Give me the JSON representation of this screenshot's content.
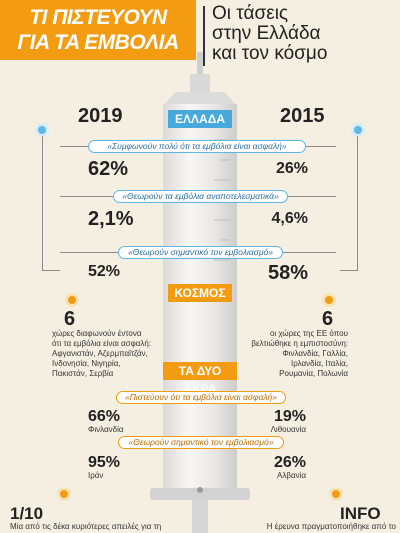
{
  "header": {
    "title_line1": "ΤΙ ΠΙΣΤΕΥΟΥΝ",
    "title_line2": "ΓΙΑ ΤΑ ΕΜΒΟΛΙΑ",
    "subtitle_line1": "Οι τάσεις",
    "subtitle_line2": "στην Ελλάδα",
    "subtitle_line3": "και τον κόσμο"
  },
  "greece": {
    "label": "ΕΛΛΑΔΑ",
    "year_left": "2019",
    "year_right": "2015",
    "items": [
      {
        "label": "«Συμφωνούν πολύ ότι τα εμβόλια είναι ασφαλή»",
        "left": "62%",
        "right": "26%"
      },
      {
        "label": "«Θεωρούν τα εμβόλια αναποτελεσματικά»",
        "left": "2,1%",
        "right": "4,6%"
      },
      {
        "label": "«Θεωρούν σημαντικό τον εμβολιασμό»",
        "left": "52%",
        "right": "58%"
      }
    ]
  },
  "world": {
    "label": "ΚΟΣΜΟΣ",
    "left_number": "6",
    "left_text_1": "χώρες διαφωνούν έντονα",
    "left_text_2": "ότι τα εμβόλια είναι ασφαλή:",
    "left_text_3": "Αφγανιστάν, Αζερμπαϊτζάν,",
    "left_text_4": "Ινδονησία, Νιγηρία,",
    "left_text_5": "Πακιστάν, Σερβία",
    "right_number": "6",
    "right_text_1": "οι χώρες της ΕΕ όπου",
    "right_text_2": "βελτιώθηκε η εμπιστοσύνη:",
    "right_text_3": "Φινλανδία, Γαλλία,",
    "right_text_4": "Ιρλανδία, Ιταλία,",
    "right_text_5": "Ρουμανία, Πολωνία"
  },
  "extremes": {
    "label": "ΤΑ ΔΥΟ ΑΚΡΑ",
    "items": [
      {
        "label": "«Πιστεύουν ότι τα εμβόλια είναι ασφαλή»",
        "left": "66%",
        "left_country": "Φινλανδία",
        "right": "19%",
        "right_country": "Λιθουανία"
      },
      {
        "label": "«Θεωρούν σημαντικό τον εμβολιασμό»",
        "left": "95%",
        "left_country": "Ιράν",
        "right": "26%",
        "right_country": "Αλβανία"
      }
    ]
  },
  "footer": {
    "left_big": "1/10",
    "left_text": "Μία από τις δέκα κυριότερες απειλές για τη",
    "right_big": "INFO",
    "right_text": "Η έρευνα πραγματοποιήθηκε από το"
  },
  "colors": {
    "orange": "#f39c12",
    "blue": "#47a8dc",
    "background": "#f5efe1"
  }
}
